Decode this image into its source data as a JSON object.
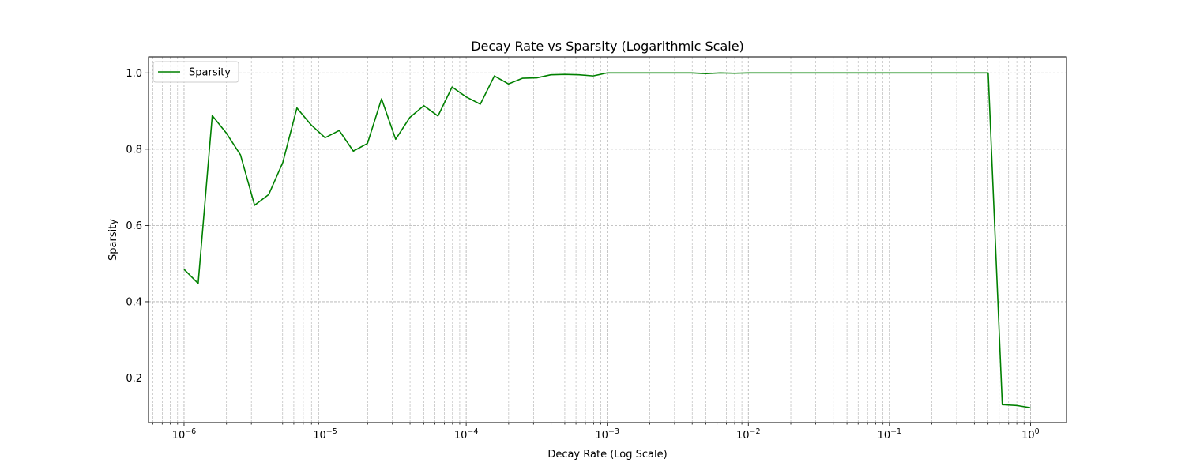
{
  "chart_data": {
    "type": "line",
    "title": "Decay Rate vs Sparsity (Logarithmic Scale)",
    "xlabel": "Decay Rate (Log Scale)",
    "ylabel": "Sparsity",
    "xscale": "log",
    "xlim": [
      5.6e-07,
      1.8
    ],
    "ylim": [
      0.083,
      1.042
    ],
    "x_major_ticks": [
      1e-06,
      1e-05,
      0.0001,
      0.001,
      0.01,
      0.1,
      1
    ],
    "x_tick_labels": [
      {
        "base": "10",
        "exp": "−6"
      },
      {
        "base": "10",
        "exp": "−5"
      },
      {
        "base": "10",
        "exp": "−4"
      },
      {
        "base": "10",
        "exp": "−3"
      },
      {
        "base": "10",
        "exp": "−2"
      },
      {
        "base": "10",
        "exp": "−1"
      },
      {
        "base": "10",
        "exp": "0"
      }
    ],
    "y_ticks": [
      0.2,
      0.4,
      0.6,
      0.8,
      1.0
    ],
    "y_tick_labels": [
      "0.2",
      "0.4",
      "0.6",
      "0.8",
      "1.0"
    ],
    "grid": true,
    "legend_position": "upper-left",
    "color": "#008000",
    "series": [
      {
        "name": "Sparsity",
        "x": [
          1e-06,
          1.2589e-06,
          1.5849e-06,
          1.9953e-06,
          2.5119e-06,
          3.1623e-06,
          3.9811e-06,
          5.0119e-06,
          6.3096e-06,
          7.9433e-06,
          1e-05,
          1.2589e-05,
          1.5849e-05,
          1.9953e-05,
          2.5119e-05,
          3.1623e-05,
          3.9811e-05,
          5.0119e-05,
          6.3096e-05,
          7.9433e-05,
          0.0001,
          0.00012589,
          0.00015849,
          0.00019953,
          0.00025119,
          0.00031623,
          0.00039811,
          0.00050119,
          0.00063096,
          0.00079433,
          0.001,
          0.0012589,
          0.0015849,
          0.0019953,
          0.0025119,
          0.0031623,
          0.0039811,
          0.0050119,
          0.0063096,
          0.0079433,
          0.01,
          0.012589,
          0.015849,
          0.019953,
          0.025119,
          0.031623,
          0.039811,
          0.050119,
          0.063096,
          0.079433,
          0.1,
          0.12589,
          0.15849,
          0.19953,
          0.25119,
          0.31623,
          0.39811,
          0.50119,
          0.63096,
          0.79433,
          1.0
        ],
        "values": [
          0.485,
          0.448,
          0.888,
          0.842,
          0.785,
          0.653,
          0.681,
          0.765,
          0.908,
          0.864,
          0.83,
          0.849,
          0.795,
          0.815,
          0.932,
          0.826,
          0.883,
          0.914,
          0.887,
          0.963,
          0.937,
          0.918,
          0.992,
          0.971,
          0.986,
          0.987,
          0.995,
          0.996,
          0.995,
          0.992,
          1.0,
          1.0,
          1.0,
          1.0,
          1.0,
          1.0,
          1.0,
          0.998,
          1.0,
          0.999,
          1.0,
          1.0,
          1.0,
          1.0,
          1.0,
          1.0,
          1.0,
          1.0,
          1.0,
          1.0,
          1.0,
          1.0,
          1.0,
          1.0,
          1.0,
          1.0,
          1.0,
          1.0,
          0.13,
          0.128,
          0.122
        ]
      }
    ]
  }
}
